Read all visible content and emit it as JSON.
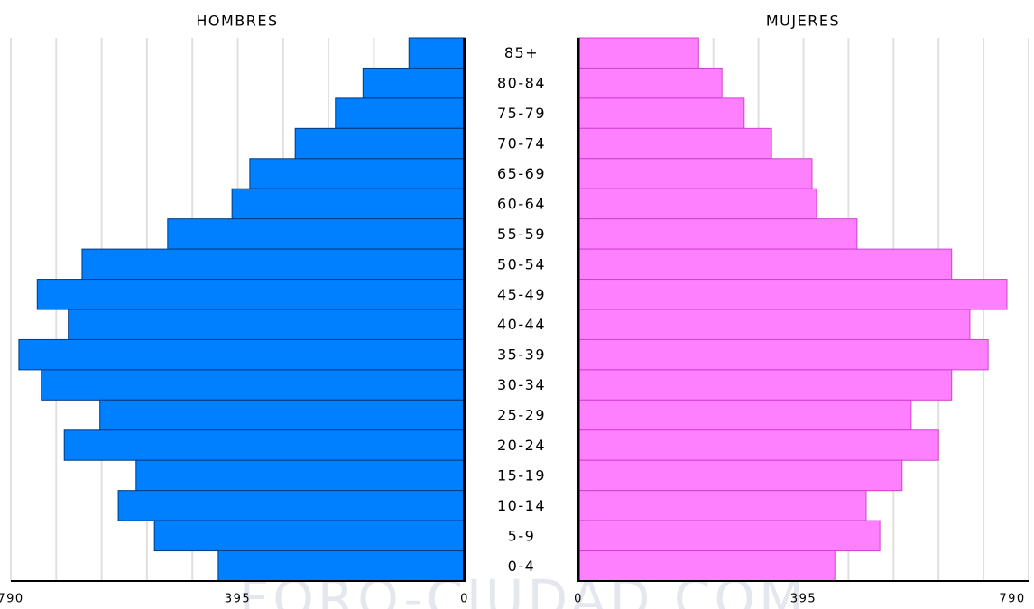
{
  "chart_data": {
    "type": "pyramid",
    "categories": [
      "85+",
      "80-84",
      "75-79",
      "70-74",
      "65-69",
      "60-64",
      "55-59",
      "50-54",
      "45-49",
      "40-44",
      "35-39",
      "30-34",
      "25-29",
      "20-24",
      "15-19",
      "10-14",
      "5-9",
      "0-4"
    ],
    "series": [
      {
        "name": "HOMBRES",
        "color": "#0080ff",
        "values": [
          97,
          177,
          225,
          295,
          374,
          405,
          517,
          666,
          744,
          690,
          776,
          737,
          635,
          697,
          572,
          603,
          540,
          429
        ]
      },
      {
        "name": "MUJERES",
        "color": "#ff80ff",
        "values": [
          211,
          252,
          291,
          339,
          410,
          418,
          489,
          655,
          752,
          687,
          719,
          655,
          584,
          632,
          568,
          505,
          529,
          450
        ]
      }
    ],
    "xlim": [
      0,
      790
    ],
    "xticks": [
      0,
      395,
      790
    ],
    "minor_xticks": [
      79,
      158,
      237,
      316,
      474,
      553,
      632,
      711
    ],
    "grid": true,
    "watermark": "FORO-CIUDAD.COM"
  }
}
